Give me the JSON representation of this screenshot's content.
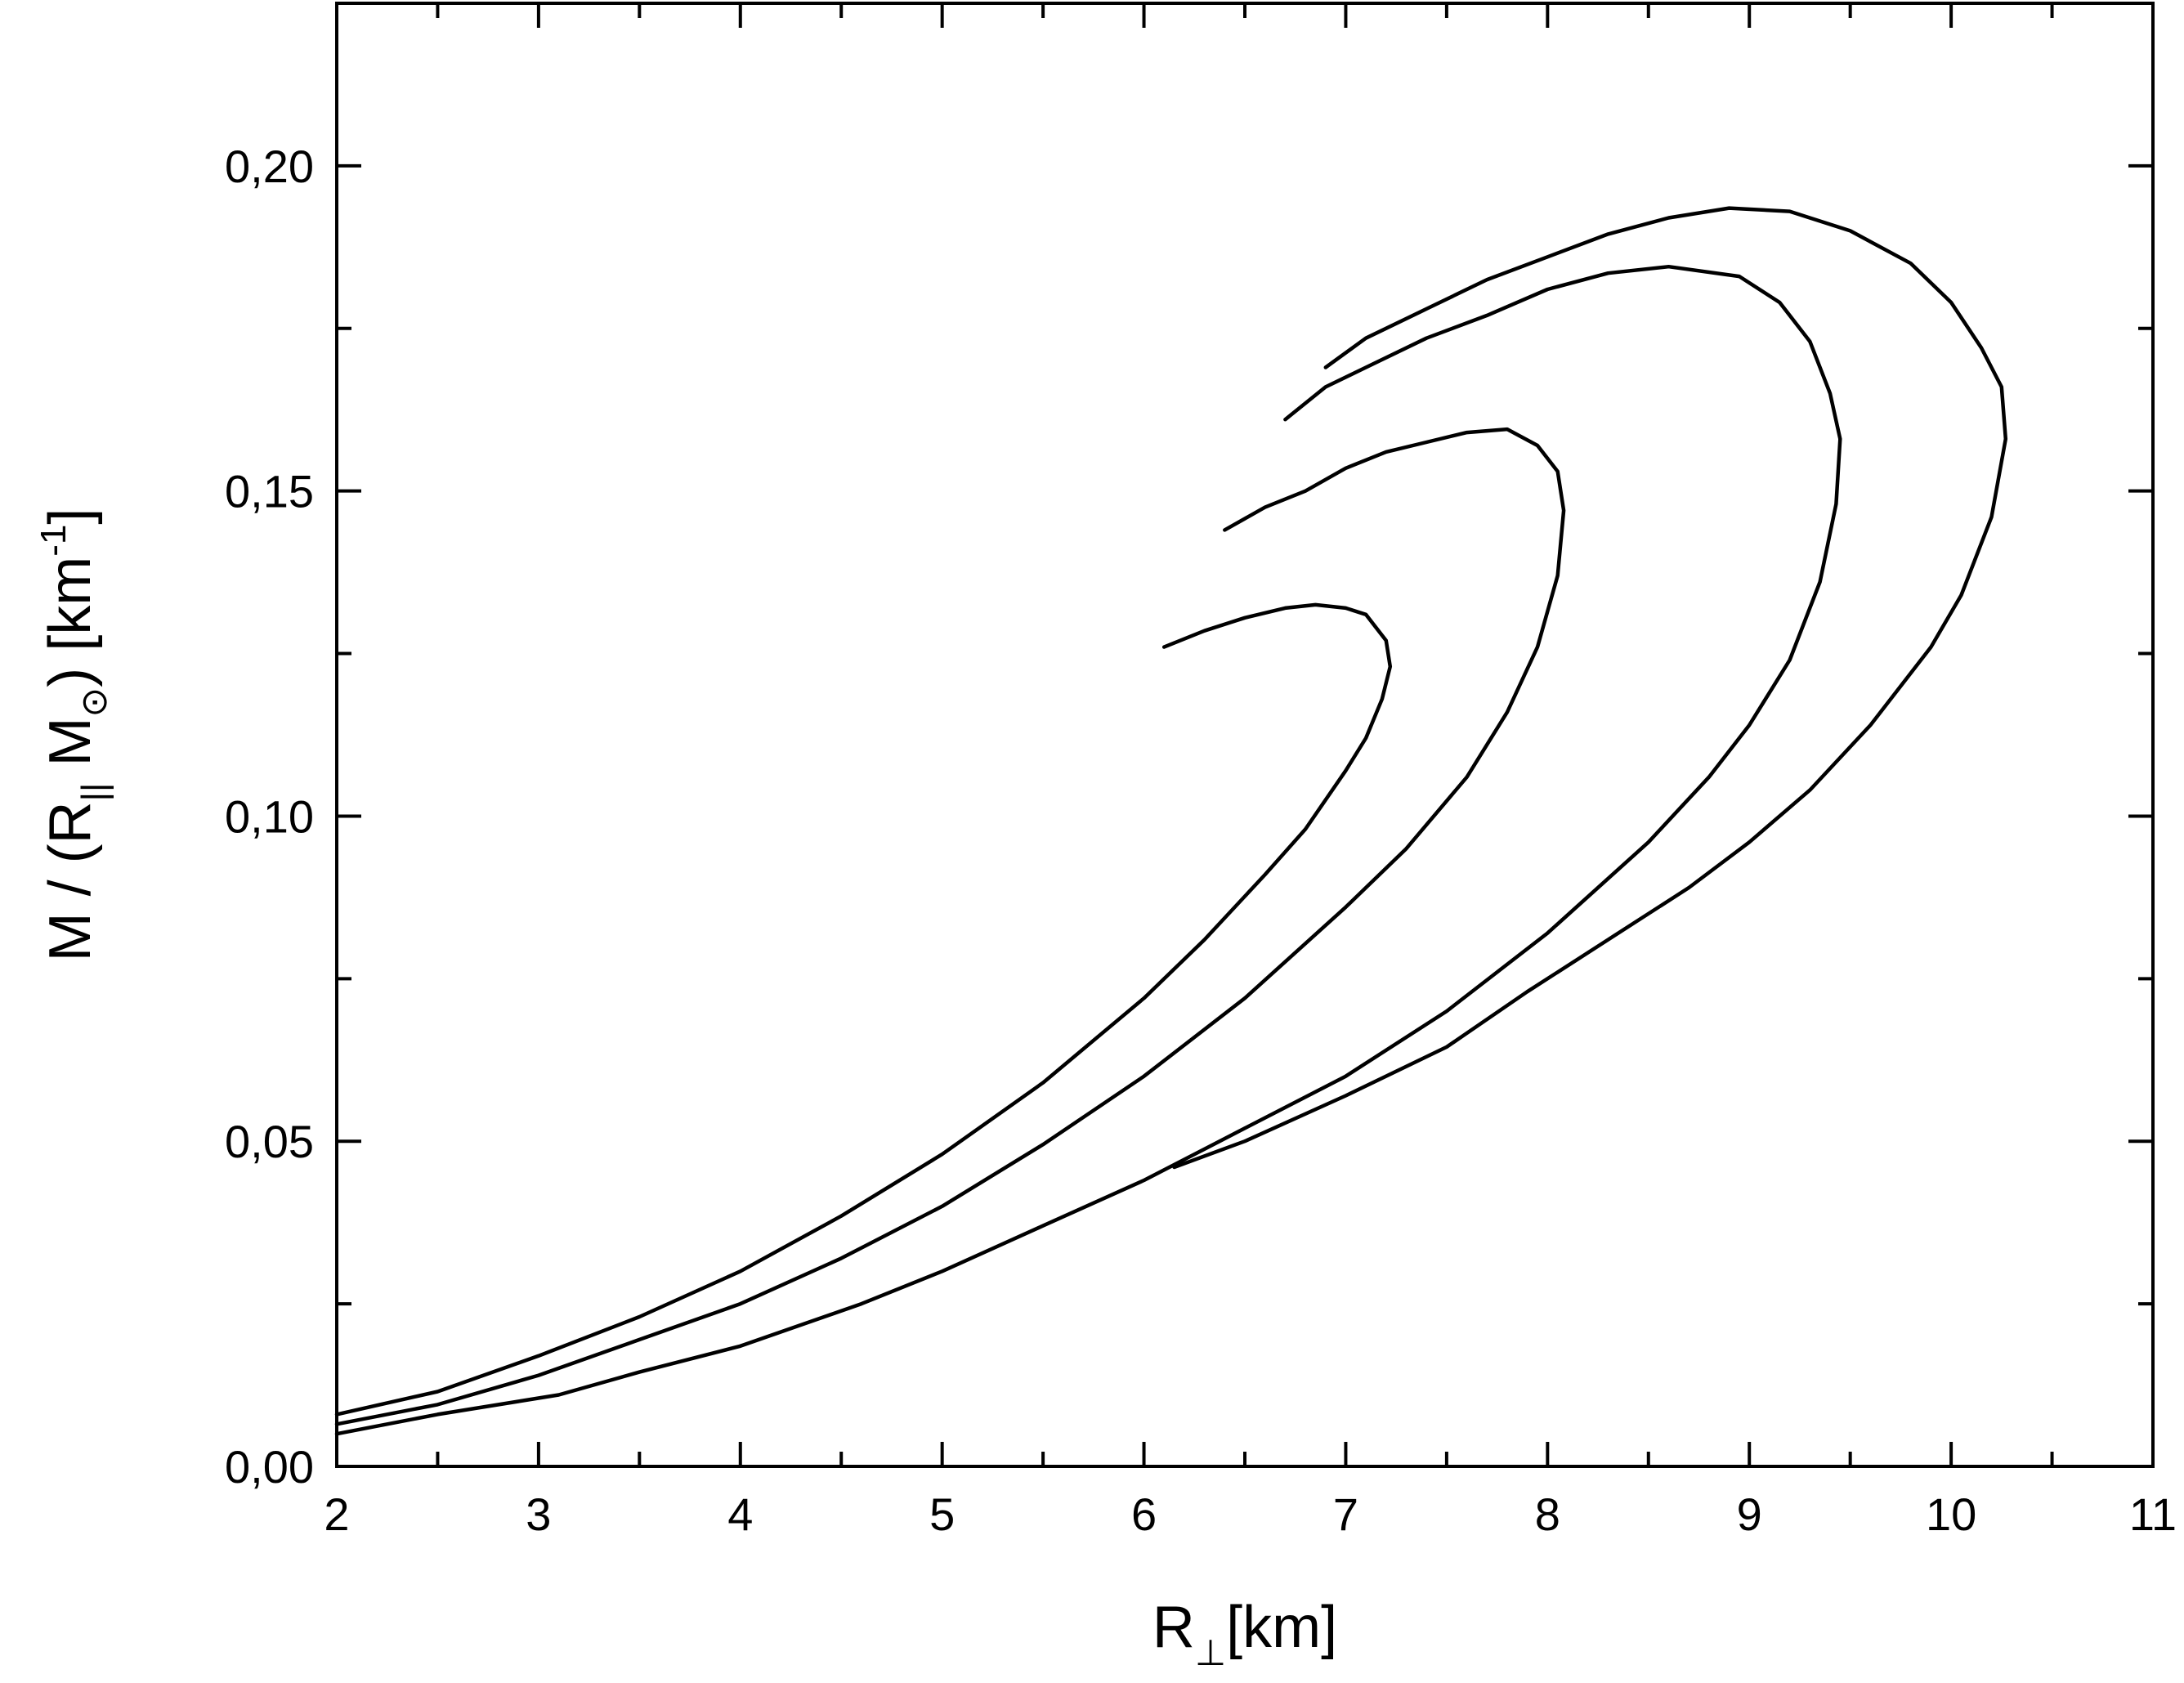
{
  "chart_data": {
    "type": "line",
    "title": "",
    "xlabel": {
      "main": "R",
      "sub": "⊥",
      "unit": "[km]"
    },
    "ylabel": {
      "prefix": "M / (R",
      "sub1": "||",
      "mid": " M",
      "sub2": "⊙",
      "close": ") [km",
      "sup": "-1",
      "end": "]"
    },
    "xlim": [
      2,
      11
    ],
    "ylim": [
      0,
      0.225
    ],
    "xticks": [
      2,
      3,
      4,
      5,
      6,
      7,
      8,
      9,
      10,
      11
    ],
    "xtick_labels": [
      "2",
      "3",
      "4",
      "5",
      "6",
      "7",
      "8",
      "9",
      "10",
      "11"
    ],
    "yticks": [
      0,
      0.05,
      0.1,
      0.15,
      0.2
    ],
    "ytick_labels": [
      "0,00",
      "0,05",
      "0,10",
      "0,15",
      "0,20"
    ],
    "grid": false,
    "legend": "none",
    "line_color": "#000000",
    "series": [
      {
        "values": [
          [
            2.0,
            0.008
          ],
          [
            2.5,
            0.0115
          ],
          [
            3.0,
            0.017
          ],
          [
            3.5,
            0.023
          ],
          [
            4.0,
            0.03
          ],
          [
            4.5,
            0.0385
          ],
          [
            5.0,
            0.048
          ],
          [
            5.5,
            0.059
          ],
          [
            6.0,
            0.072
          ],
          [
            6.3,
            0.081
          ],
          [
            6.6,
            0.091
          ],
          [
            6.8,
            0.098
          ],
          [
            7.0,
            0.107
          ],
          [
            7.1,
            0.112
          ],
          [
            7.18,
            0.118
          ],
          [
            7.22,
            0.123
          ],
          [
            7.2,
            0.127
          ],
          [
            7.1,
            0.131
          ],
          [
            7.0,
            0.132
          ],
          [
            6.85,
            0.1325
          ],
          [
            6.7,
            0.132
          ],
          [
            6.5,
            0.1305
          ],
          [
            6.3,
            0.1285
          ],
          [
            6.1,
            0.126
          ]
        ]
      },
      {
        "values": [
          [
            2.0,
            0.0065
          ],
          [
            2.5,
            0.0095
          ],
          [
            3.0,
            0.014
          ],
          [
            3.5,
            0.0195
          ],
          [
            4.0,
            0.025
          ],
          [
            4.5,
            0.032
          ],
          [
            5.0,
            0.04
          ],
          [
            5.5,
            0.0495
          ],
          [
            6.0,
            0.06
          ],
          [
            6.5,
            0.072
          ],
          [
            7.0,
            0.086
          ],
          [
            7.3,
            0.095
          ],
          [
            7.6,
            0.106
          ],
          [
            7.8,
            0.116
          ],
          [
            7.95,
            0.126
          ],
          [
            8.05,
            0.137
          ],
          [
            8.08,
            0.147
          ],
          [
            8.05,
            0.153
          ],
          [
            7.95,
            0.157
          ],
          [
            7.8,
            0.1595
          ],
          [
            7.6,
            0.159
          ],
          [
            7.4,
            0.1575
          ],
          [
            7.2,
            0.156
          ],
          [
            7.0,
            0.1535
          ],
          [
            6.8,
            0.15
          ],
          [
            6.6,
            0.1475
          ],
          [
            6.4,
            0.144
          ]
        ]
      },
      {
        "values": [
          [
            2.0,
            0.005
          ],
          [
            2.5,
            0.008
          ],
          [
            3.1,
            0.011
          ],
          [
            3.5,
            0.0145
          ],
          [
            4.0,
            0.0185
          ],
          [
            4.6,
            0.025
          ],
          [
            5.0,
            0.03
          ],
          [
            5.5,
            0.037
          ],
          [
            6.0,
            0.044
          ],
          [
            6.5,
            0.052
          ],
          [
            7.0,
            0.06
          ],
          [
            7.5,
            0.07
          ],
          [
            8.0,
            0.082
          ],
          [
            8.5,
            0.096
          ],
          [
            8.8,
            0.106
          ],
          [
            9.0,
            0.114
          ],
          [
            9.2,
            0.124
          ],
          [
            9.35,
            0.136
          ],
          [
            9.43,
            0.148
          ],
          [
            9.45,
            0.158
          ],
          [
            9.4,
            0.165
          ],
          [
            9.3,
            0.173
          ],
          [
            9.15,
            0.179
          ],
          [
            8.95,
            0.183
          ],
          [
            8.6,
            0.1845
          ],
          [
            8.3,
            0.1835
          ],
          [
            8.0,
            0.181
          ],
          [
            7.7,
            0.177
          ],
          [
            7.4,
            0.1735
          ],
          [
            7.1,
            0.169
          ],
          [
            6.9,
            0.166
          ],
          [
            6.7,
            0.161
          ]
        ]
      },
      {
        "values": [
          [
            6.15,
            0.046
          ],
          [
            6.5,
            0.05
          ],
          [
            7.0,
            0.057
          ],
          [
            7.5,
            0.0645
          ],
          [
            7.9,
            0.073
          ],
          [
            8.3,
            0.081
          ],
          [
            8.7,
            0.089
          ],
          [
            9.0,
            0.096
          ],
          [
            9.3,
            0.104
          ],
          [
            9.6,
            0.114
          ],
          [
            9.9,
            0.126
          ],
          [
            10.05,
            0.134
          ],
          [
            10.2,
            0.146
          ],
          [
            10.27,
            0.158
          ],
          [
            10.25,
            0.166
          ],
          [
            10.15,
            0.172
          ],
          [
            10.0,
            0.179
          ],
          [
            9.8,
            0.185
          ],
          [
            9.5,
            0.19
          ],
          [
            9.2,
            0.193
          ],
          [
            8.9,
            0.1935
          ],
          [
            8.6,
            0.192
          ],
          [
            8.3,
            0.1895
          ],
          [
            8.0,
            0.186
          ],
          [
            7.7,
            0.1825
          ],
          [
            7.4,
            0.178
          ],
          [
            7.1,
            0.1735
          ],
          [
            6.9,
            0.169
          ]
        ]
      }
    ]
  }
}
